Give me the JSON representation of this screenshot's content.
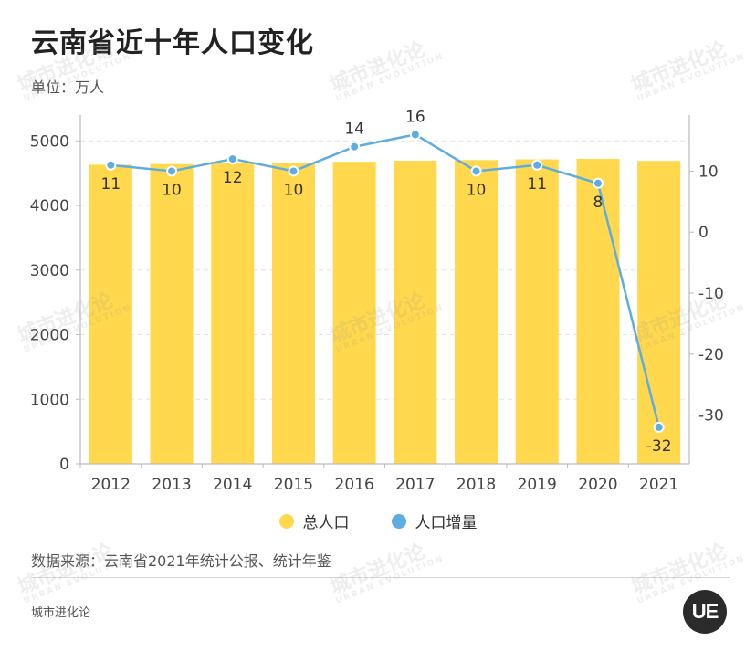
{
  "header": {
    "title": "云南省近十年人口变化",
    "subtitle": "单位：万人"
  },
  "legend": [
    {
      "label": "总人口",
      "color": "#FFD84D"
    },
    {
      "label": "人口增量",
      "color": "#5DADE2"
    }
  ],
  "footer": {
    "source": "数据来源：云南省2021年统计公报、统计年鉴",
    "brand": "城市进化论",
    "logo_text": "UE"
  },
  "watermark": {
    "text": "城市进化论",
    "sub": "URBAN EVOLUTION"
  },
  "chart_data": {
    "type": "bar",
    "categories": [
      "2012",
      "2013",
      "2014",
      "2015",
      "2016",
      "2017",
      "2018",
      "2019",
      "2020",
      "2021"
    ],
    "series": [
      {
        "name": "总人口",
        "type": "bar",
        "axis": "left",
        "color": "#FFD84D",
        "values": [
          4631,
          4641,
          4653,
          4663,
          4677,
          4693,
          4703,
          4714,
          4722,
          4690
        ]
      },
      {
        "name": "人口增量",
        "type": "line",
        "axis": "right",
        "color": "#5DADE2",
        "values": [
          11,
          10,
          12,
          10,
          14,
          16,
          10,
          11,
          8,
          -32
        ],
        "data_labels": [
          "11",
          "10",
          "12",
          "10",
          "14",
          "16",
          "10",
          "11",
          "8",
          "-32"
        ]
      }
    ],
    "y_left": {
      "min": 0,
      "max": 5400,
      "ticks": [
        "0",
        "1000",
        "2000",
        "3000",
        "4000",
        "5000"
      ]
    },
    "y_right": {
      "min": -38,
      "max": 19.2,
      "ticks": [
        "-30",
        "-20",
        "-10",
        "0",
        "10"
      ]
    },
    "grid": "dashed-horizontal",
    "legend_position": "bottom-center"
  }
}
